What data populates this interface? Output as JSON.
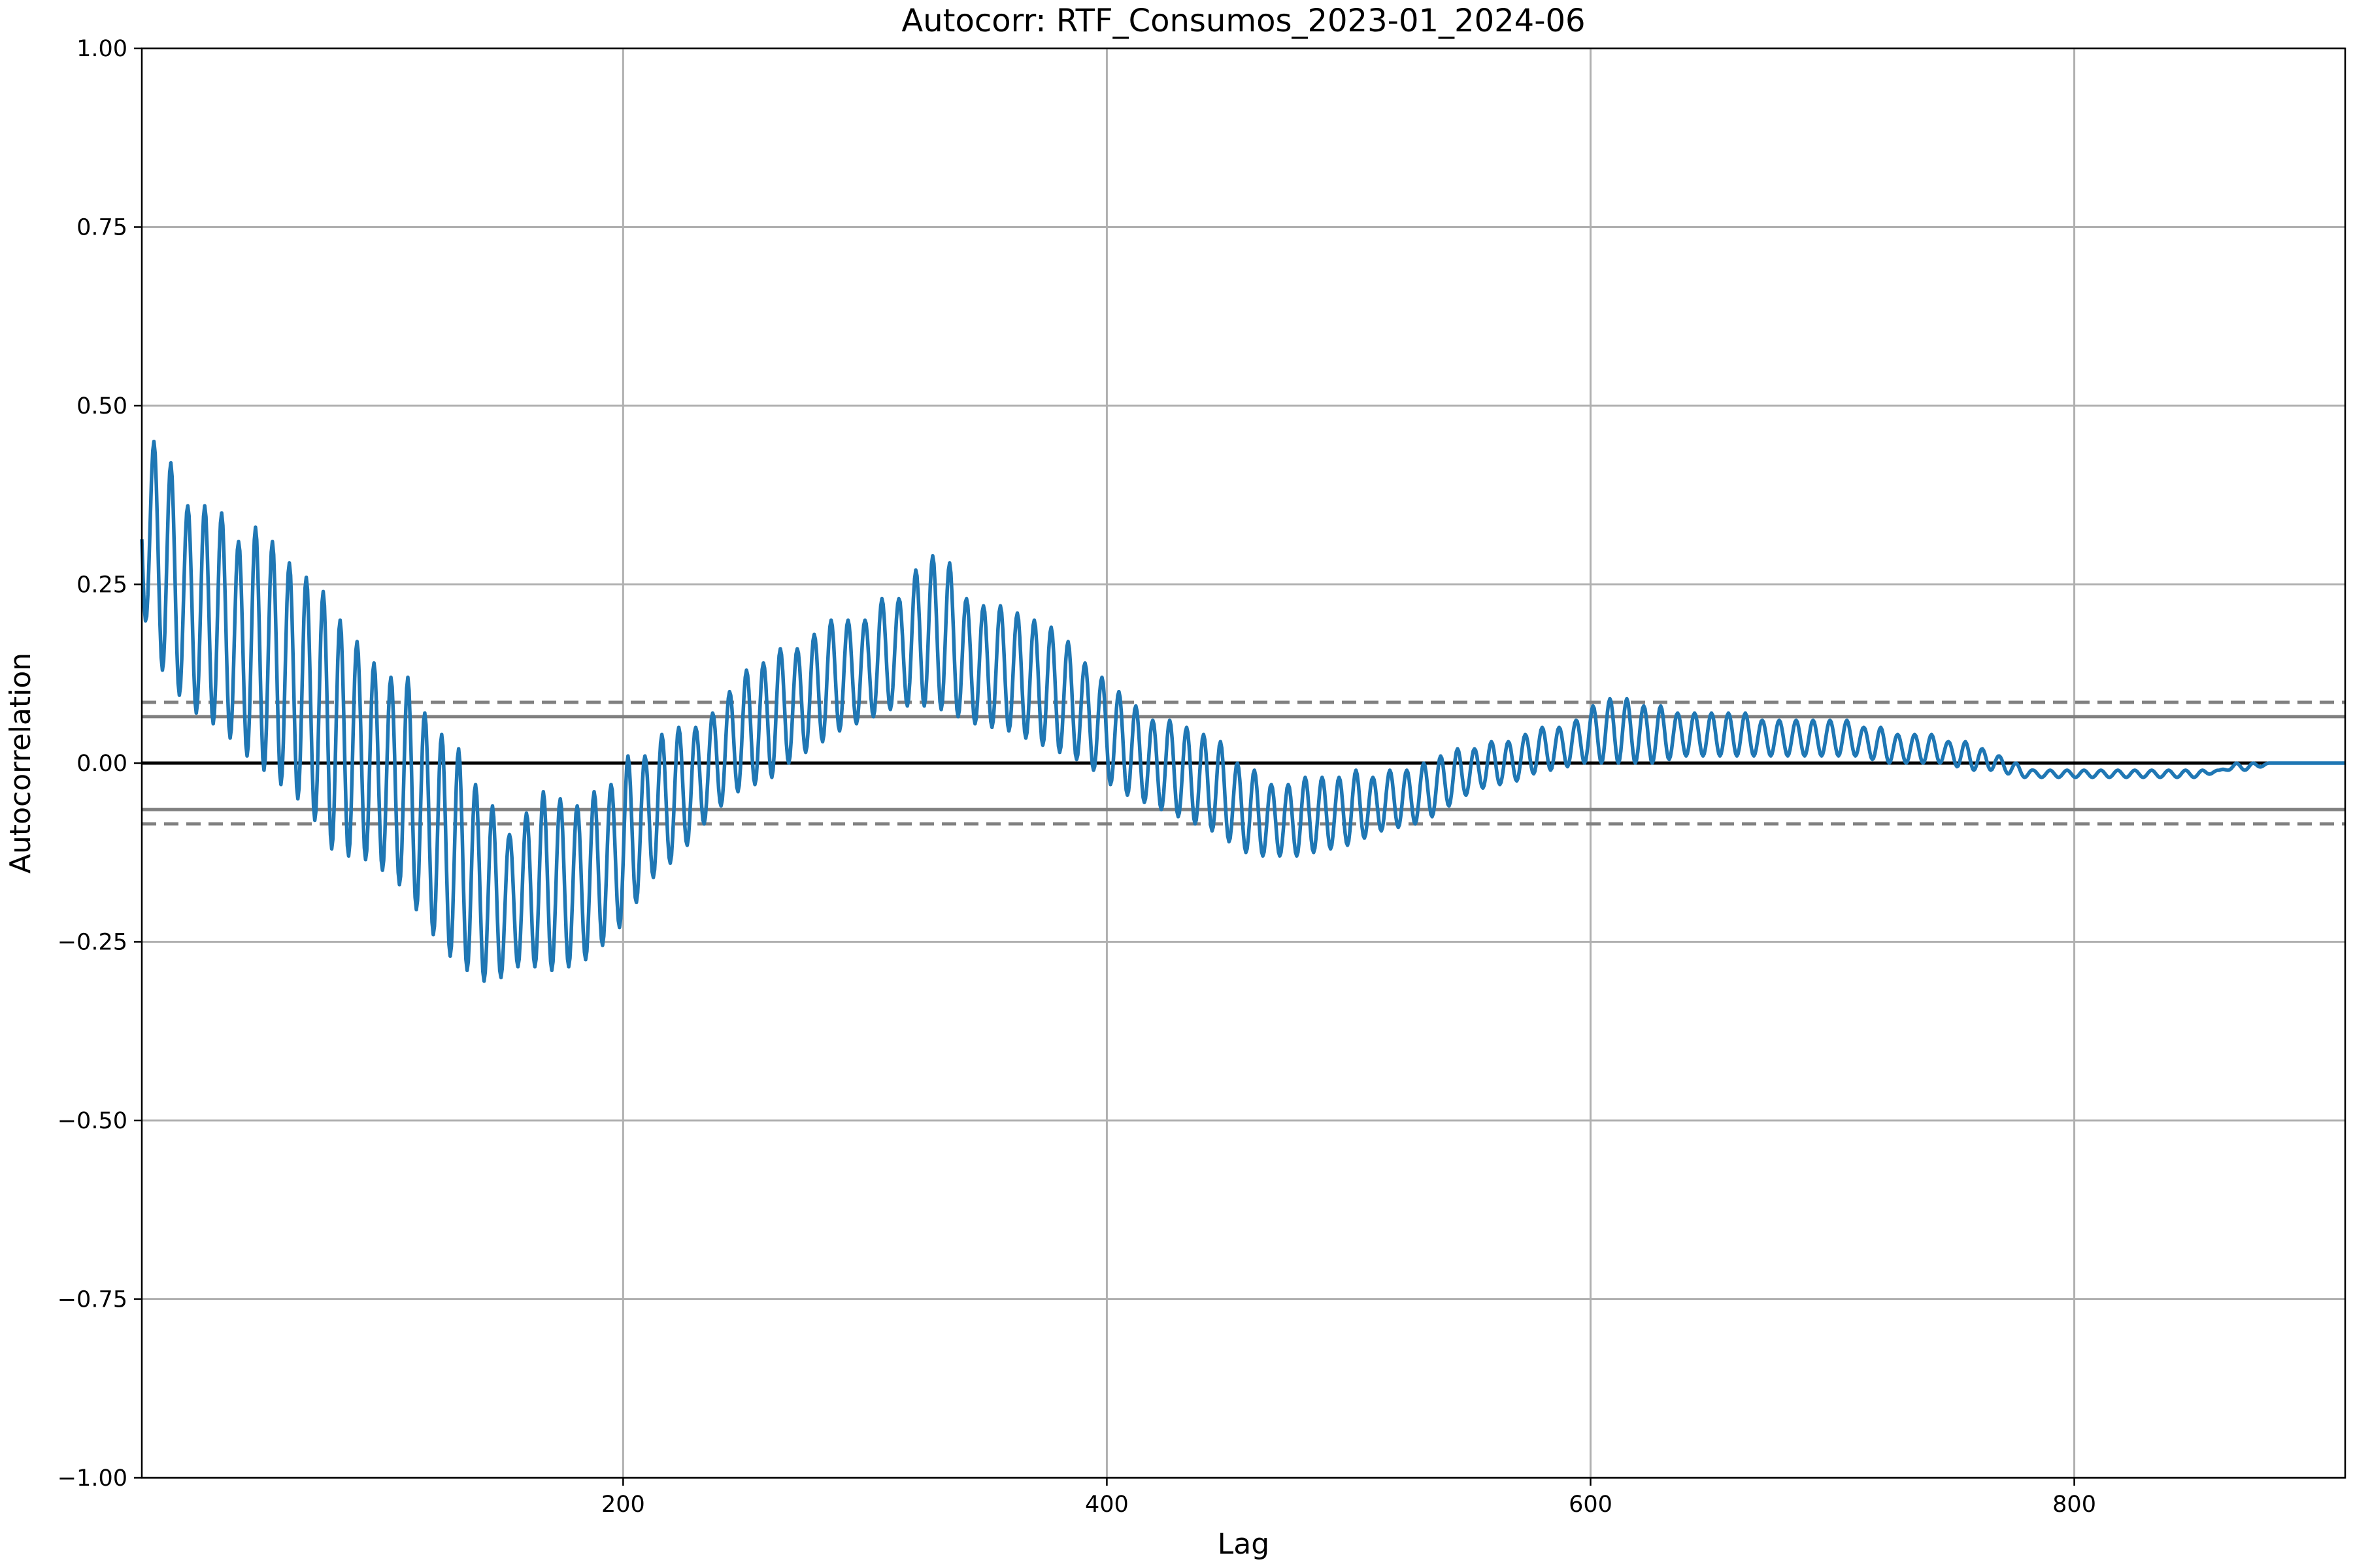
{
  "chart_data": {
    "type": "line",
    "title": "Autocorr: RTF_Consumos_2023-01_2024-06",
    "xlabel": "Lag",
    "ylabel": "Autocorrelation",
    "xlim": [
      1,
      912
    ],
    "ylim": [
      -1.0,
      1.0
    ],
    "grid": true,
    "x_ticks": [
      200,
      400,
      600,
      800
    ],
    "x_tick_labels": [
      "200",
      "400",
      "600",
      "800"
    ],
    "y_ticks": [
      1.0,
      0.75,
      0.5,
      0.25,
      0.0,
      -0.25,
      -0.5,
      -0.75,
      -1.0
    ],
    "y_tick_labels": [
      "1.00",
      "0.75",
      "0.50",
      "0.25",
      "0.00",
      "−0.25",
      "−0.50",
      "−0.75",
      "−1.00"
    ],
    "reference_lines": [
      {
        "kind": "zero",
        "y": 0.0,
        "color": "#000000",
        "style": "solid"
      },
      {
        "kind": "ci95",
        "y": 0.065,
        "color": "#808080",
        "style": "solid"
      },
      {
        "kind": "ci95",
        "y": -0.065,
        "color": "#808080",
        "style": "solid"
      },
      {
        "kind": "ci99",
        "y": 0.085,
        "color": "#808080",
        "style": "dashed"
      },
      {
        "kind": "ci99",
        "y": -0.085,
        "color": "#808080",
        "style": "dashed"
      }
    ],
    "series_color": "#1f77b4",
    "series": [
      {
        "name": "",
        "anchors": {
          "lag": [
            1,
            6,
            13,
            20,
            27,
            34,
            41,
            48,
            55,
            62,
            69,
            76,
            83,
            90,
            97,
            104,
            111,
            118,
            125,
            132,
            139,
            146,
            153,
            160,
            167,
            174,
            181,
            188,
            195,
            202,
            209,
            216,
            223,
            230,
            237,
            244,
            251,
            258,
            265,
            272,
            279,
            286,
            293,
            300,
            307,
            314,
            321,
            328,
            335,
            342,
            349,
            356,
            363,
            370,
            377,
            384,
            391,
            398,
            405,
            412,
            419,
            426,
            433,
            440,
            447,
            454,
            461,
            468,
            475,
            482,
            489,
            496,
            503,
            510,
            517,
            524,
            531,
            538,
            545,
            552,
            559,
            566,
            573,
            580,
            587,
            594,
            601,
            608,
            615,
            622,
            629,
            636,
            643,
            650,
            657,
            664,
            671,
            678,
            685,
            692,
            699,
            706,
            713,
            720,
            727,
            734,
            741,
            748,
            755,
            762,
            769,
            776,
            783,
            790,
            797,
            804,
            811,
            818,
            825,
            832,
            839,
            846,
            853,
            860,
            867,
            874,
            881,
            888,
            895,
            902,
            909,
            912
          ],
          "peak": [
            0.46,
            0.45,
            0.42,
            0.36,
            0.36,
            0.35,
            0.31,
            0.33,
            0.31,
            0.28,
            0.26,
            0.24,
            0.2,
            0.17,
            0.14,
            0.12,
            0.12,
            0.07,
            0.04,
            0.02,
            -0.03,
            -0.06,
            -0.1,
            -0.07,
            -0.04,
            -0.05,
            -0.06,
            -0.04,
            -0.03,
            0.01,
            0.01,
            0.04,
            0.05,
            0.05,
            0.07,
            0.1,
            0.13,
            0.14,
            0.16,
            0.16,
            0.18,
            0.2,
            0.2,
            0.2,
            0.23,
            0.23,
            0.27,
            0.29,
            0.28,
            0.23,
            0.22,
            0.22,
            0.21,
            0.2,
            0.19,
            0.17,
            0.14,
            0.12,
            0.1,
            0.08,
            0.06,
            0.06,
            0.05,
            0.04,
            0.03,
            0.0,
            -0.01,
            -0.03,
            -0.03,
            -0.02,
            -0.02,
            -0.02,
            -0.01,
            -0.02,
            -0.01,
            -0.01,
            0.0,
            0.01,
            0.02,
            0.02,
            0.03,
            0.03,
            0.04,
            0.05,
            0.05,
            0.06,
            0.08,
            0.09,
            0.09,
            0.08,
            0.08,
            0.07,
            0.07,
            0.07,
            0.07,
            0.07,
            0.06,
            0.06,
            0.06,
            0.06,
            0.06,
            0.06,
            0.05,
            0.05,
            0.04,
            0.04,
            0.04,
            0.03,
            0.03,
            0.02,
            0.01,
            0.0,
            -0.01,
            -0.01,
            -0.01,
            -0.01,
            -0.01,
            -0.01,
            -0.01,
            -0.01,
            -0.01,
            -0.01,
            -0.01,
            -0.01,
            0.0,
            0.0,
            0.0,
            0.0,
            0.0,
            0.0,
            0.0,
            0.0
          ],
          "trough": [
            0.22,
            0.15,
            0.11,
            0.08,
            0.06,
            0.05,
            0.02,
            0.0,
            -0.02,
            -0.04,
            -0.06,
            -0.1,
            -0.14,
            -0.12,
            -0.15,
            -0.15,
            -0.19,
            -0.22,
            -0.26,
            -0.28,
            -0.3,
            -0.31,
            -0.29,
            -0.28,
            -0.29,
            -0.29,
            -0.28,
            -0.27,
            -0.24,
            -0.22,
            -0.17,
            -0.15,
            -0.13,
            -0.1,
            -0.07,
            -0.05,
            -0.03,
            -0.03,
            -0.01,
            0.01,
            0.02,
            0.04,
            0.05,
            0.06,
            0.07,
            0.08,
            0.08,
            0.08,
            0.07,
            0.06,
            0.05,
            0.05,
            0.04,
            0.03,
            0.02,
            0.01,
            0.0,
            -0.02,
            -0.04,
            -0.05,
            -0.06,
            -0.07,
            -0.08,
            -0.09,
            -0.1,
            -0.12,
            -0.13,
            -0.13,
            -0.13,
            -0.13,
            -0.12,
            -0.12,
            -0.11,
            -0.1,
            -0.09,
            -0.09,
            -0.08,
            -0.07,
            -0.05,
            -0.04,
            -0.03,
            -0.03,
            -0.02,
            -0.01,
            -0.01,
            0.0,
            0.0,
            0.0,
            0.0,
            0.0,
            0.0,
            0.01,
            0.01,
            0.01,
            0.01,
            0.01,
            0.01,
            0.01,
            0.01,
            0.01,
            0.01,
            0.01,
            0.01,
            0.0,
            0.0,
            0.0,
            0.0,
            0.0,
            -0.01,
            -0.01,
            -0.01,
            -0.02,
            -0.02,
            -0.02,
            -0.02,
            -0.02,
            -0.02,
            -0.02,
            -0.02,
            -0.02,
            -0.02,
            -0.02,
            -0.02,
            -0.01,
            -0.01,
            -0.01,
            0.0,
            0.0,
            0.0,
            0.0,
            0.0,
            0.0
          ]
        }
      }
    ]
  }
}
